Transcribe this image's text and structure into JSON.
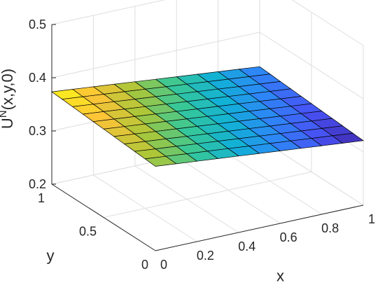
{
  "chart_data": {
    "type": "surface",
    "title": "",
    "xlabel": "x",
    "ylabel": "y",
    "zlabel_base": "U",
    "zlabel_sup": "N",
    "zlabel_rest": "(x,y,0)",
    "xlim": [
      0,
      1
    ],
    "ylim": [
      0,
      1
    ],
    "zlim": [
      0.2,
      0.5
    ],
    "x_ticks": [
      "0",
      "0.2",
      "0.4",
      "0.6",
      "0.8",
      "1"
    ],
    "y_ticks": [
      "0",
      "0.5",
      "1"
    ],
    "z_ticks": [
      "0.2",
      "0.3",
      "0.4",
      "0.5"
    ],
    "grid": true,
    "colormap": "parula",
    "grid_resolution": [
      10,
      10
    ],
    "surface_corners": {
      "x0_y0": 0.3585,
      "x1_y0": 0.3213,
      "x0_y1": 0.3736,
      "x1_y1": 0.3352
    }
  }
}
